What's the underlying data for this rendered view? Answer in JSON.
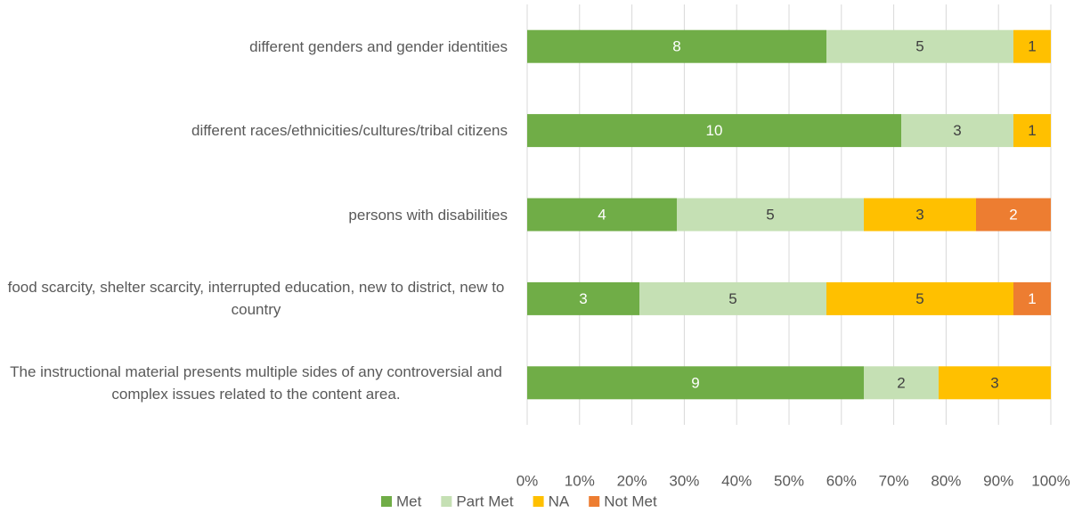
{
  "chart_data": {
    "type": "bar",
    "orientation": "horizontal",
    "stacked": "percent",
    "categories": [
      "different genders and gender identities",
      "different races/ethnicities/cultures/tribal citizens",
      "persons with disabilities",
      "food scarcity, shelter scarcity, interrupted education, new to district, new to country",
      "The instructional material presents multiple sides  of any controversial and complex issues related to  the content area."
    ],
    "series": [
      {
        "name": "Met",
        "color": "#70ad47",
        "label_color": "#ffffff",
        "values": [
          8,
          10,
          4,
          3,
          9
        ]
      },
      {
        "name": "Part Met",
        "color": "#c5e0b4",
        "label_color": "#404040",
        "values": [
          5,
          3,
          5,
          5,
          2
        ]
      },
      {
        "name": "NA",
        "color": "#ffc000",
        "label_color": "#404040",
        "values": [
          1,
          1,
          3,
          5,
          3
        ]
      },
      {
        "name": "Not Met",
        "color": "#ed7d31",
        "label_color": "#ffffff",
        "values": [
          null,
          null,
          2,
          1,
          null
        ]
      }
    ],
    "xlim": [
      0,
      100
    ],
    "xticks": [
      {
        "value": 0,
        "label": "0%"
      },
      {
        "value": 10,
        "label": "10%"
      },
      {
        "value": 20,
        "label": "20%"
      },
      {
        "value": 30,
        "label": "30%"
      },
      {
        "value": 40,
        "label": "40%"
      },
      {
        "value": 50,
        "label": "50%"
      },
      {
        "value": 60,
        "label": "60%"
      },
      {
        "value": 70,
        "label": "70%"
      },
      {
        "value": 80,
        "label": "80%"
      },
      {
        "value": 90,
        "label": "90%"
      },
      {
        "value": 100,
        "label": "100%"
      }
    ],
    "grid": true,
    "legend": "bottom"
  }
}
